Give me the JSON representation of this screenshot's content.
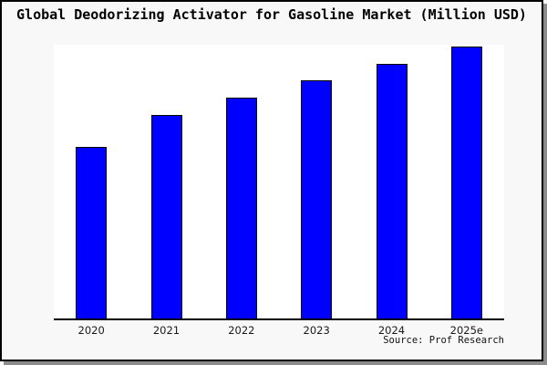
{
  "chart_data": {
    "type": "bar",
    "title": "Global Deodorizing Activator for Gasoline Market (Million USD)",
    "categories": [
      "2020",
      "2021",
      "2022",
      "2023",
      "2024",
      "2025e"
    ],
    "values": [
      100,
      119,
      129,
      139,
      149,
      159
    ],
    "values_note": "No y-axis or value labels are shown in the image; values are relative estimates read from bar heights, indexed to 2020 = 100",
    "xlabel": "",
    "ylabel": "",
    "ylim": [
      0,
      160
    ],
    "grid": false,
    "legend": "none",
    "source": "Source: Prof Research",
    "bar_color": "#0000fe",
    "bar_border_color": "#000000"
  },
  "colors": {
    "figure_background": "#f8f8f8",
    "plot_background": "#ffffff",
    "frame_border": "#000000",
    "drop_shadow": "#8c8c8c",
    "axis_line": "#000000",
    "text": "#000000"
  }
}
